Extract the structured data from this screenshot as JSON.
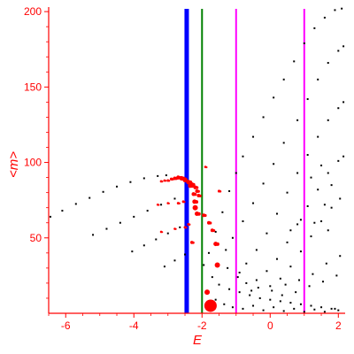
{
  "colors": {
    "axis": "#ff0000",
    "tick_label": "#ff0000",
    "black_dots": "#000000",
    "red_dots": "#ff0000",
    "line_blue": "#0000ff",
    "line_green": "#008000",
    "line_magenta": "#ff00ff"
  },
  "chart_data": {
    "type": "scatter",
    "xlabel": "E",
    "ylabel": "<m>",
    "xlim": [
      -6.5,
      2.2
    ],
    "ylim": [
      0,
      203
    ],
    "xticks": [
      -6,
      -4,
      -2,
      0,
      2
    ],
    "yticks": [
      50,
      100,
      150,
      200
    ],
    "xtick_labels": [
      "-6",
      "-4",
      "-2",
      "0",
      "2"
    ],
    "ytick_labels": [
      "50",
      "100",
      "150",
      "200"
    ],
    "grid": false,
    "vertical_lines": [
      {
        "x": -2.45,
        "color": "#0000ff",
        "style": "thick"
      },
      {
        "x": -2.0,
        "color": "#008000",
        "style": "thin"
      },
      {
        "x": -1.0,
        "color": "#ff00ff",
        "style": "thin"
      },
      {
        "x": 1.0,
        "color": "#ff00ff",
        "style": "thin"
      }
    ],
    "series": [
      {
        "color": "#000000",
        "marker": "small-dot",
        "points": [
          [
            -6.45,
            64
          ],
          [
            -6.1,
            68
          ],
          [
            -5.7,
            72.5
          ],
          [
            -5.3,
            76.5
          ],
          [
            -4.9,
            80.5
          ],
          [
            -4.5,
            84
          ],
          [
            -4.1,
            87
          ],
          [
            -3.7,
            89.5
          ],
          [
            -3.3,
            91
          ],
          [
            -3.05,
            91.5
          ],
          [
            -5.2,
            52
          ],
          [
            -4.8,
            56
          ],
          [
            -4.4,
            60
          ],
          [
            -4.0,
            64
          ],
          [
            -3.6,
            68
          ],
          [
            -3.2,
            72
          ],
          [
            -2.8,
            76
          ],
          [
            -4.05,
            41
          ],
          [
            -3.7,
            45
          ],
          [
            -3.35,
            49
          ],
          [
            -3.0,
            53
          ],
          [
            -2.65,
            57
          ],
          [
            -3.1,
            31
          ],
          [
            -2.8,
            35
          ],
          [
            -2.5,
            39
          ],
          [
            -1.95,
            32
          ],
          [
            -1.8,
            40
          ],
          [
            -1.6,
            54
          ],
          [
            -1.4,
            67
          ],
          [
            -1.2,
            81
          ],
          [
            -1.0,
            93
          ],
          [
            -0.8,
            104
          ],
          [
            -0.5,
            117
          ],
          [
            -0.2,
            130
          ],
          [
            0.1,
            143
          ],
          [
            0.4,
            155
          ],
          [
            0.7,
            167
          ],
          [
            1.0,
            179
          ],
          [
            1.3,
            189
          ],
          [
            1.6,
            196
          ],
          [
            1.9,
            201
          ],
          [
            2.1,
            202
          ],
          [
            -1.3,
            42
          ],
          [
            -1.1,
            50
          ],
          [
            -0.8,
            61
          ],
          [
            -0.5,
            73
          ],
          [
            -0.2,
            86
          ],
          [
            0.1,
            99
          ],
          [
            0.4,
            113
          ],
          [
            0.8,
            128
          ],
          [
            1.1,
            142
          ],
          [
            1.4,
            155
          ],
          [
            1.7,
            166
          ],
          [
            2.0,
            174
          ],
          [
            2.15,
            177
          ],
          [
            -0.9,
            27
          ],
          [
            -0.7,
            33
          ],
          [
            -0.4,
            42
          ],
          [
            -0.1,
            53
          ],
          [
            0.2,
            66
          ],
          [
            0.5,
            80
          ],
          [
            0.8,
            93
          ],
          [
            1.1,
            105
          ],
          [
            1.4,
            117
          ],
          [
            1.7,
            128
          ],
          [
            2.0,
            136
          ],
          [
            2.15,
            140
          ],
          [
            -0.4,
            22
          ],
          [
            -0.1,
            28
          ],
          [
            0.2,
            36
          ],
          [
            0.5,
            47
          ],
          [
            0.8,
            59
          ],
          [
            1.1,
            71
          ],
          [
            1.4,
            82
          ],
          [
            1.7,
            93
          ],
          [
            2.0,
            101
          ],
          [
            2.15,
            104
          ],
          [
            0.0,
            18
          ],
          [
            0.3,
            23
          ],
          [
            0.6,
            31
          ],
          [
            0.9,
            41
          ],
          [
            1.2,
            51
          ],
          [
            1.5,
            61
          ],
          [
            1.8,
            70
          ],
          [
            2.05,
            76
          ],
          [
            -1.7,
            24
          ],
          [
            -1.5,
            19
          ],
          [
            -1.2,
            16
          ],
          [
            -0.9,
            14
          ],
          [
            -0.6,
            12
          ],
          [
            -0.3,
            10
          ],
          [
            0.0,
            9
          ],
          [
            0.3,
            8
          ],
          [
            0.6,
            7
          ],
          [
            0.9,
            6
          ],
          [
            1.2,
            5
          ],
          [
            1.5,
            4
          ],
          [
            1.8,
            3
          ],
          [
            2.0,
            2
          ],
          [
            -1.6,
            9
          ],
          [
            -1.35,
            6
          ],
          [
            -1.1,
            4
          ],
          [
            -0.8,
            3
          ],
          [
            -0.5,
            5
          ],
          [
            -0.2,
            2
          ],
          [
            0.1,
            4
          ],
          [
            0.4,
            1.5
          ],
          [
            0.7,
            3
          ],
          [
            1.0,
            1
          ],
          [
            1.3,
            2.5
          ],
          [
            1.6,
            1
          ],
          [
            1.9,
            3
          ],
          [
            -0.7,
            20
          ],
          [
            -0.35,
            17
          ],
          [
            0.05,
            15
          ],
          [
            0.45,
            19
          ],
          [
            0.85,
            22
          ],
          [
            1.25,
            26
          ],
          [
            1.65,
            33
          ],
          [
            2.05,
            38
          ],
          [
            -1.25,
            30
          ],
          [
            -0.95,
            24
          ],
          [
            -0.55,
            15
          ],
          [
            0.35,
            12
          ],
          [
            0.75,
            14
          ],
          [
            1.15,
            18
          ],
          [
            1.55,
            21
          ],
          [
            1.95,
            25
          ],
          [
            1.2,
            90
          ],
          [
            1.5,
            98
          ],
          [
            1.8,
            85
          ],
          [
            1.3,
            60
          ],
          [
            1.7,
            55
          ],
          [
            0.6,
            55
          ],
          [
            0.9,
            62
          ],
          [
            1.6,
            72
          ]
        ]
      },
      {
        "color": "#ff0000",
        "marker": "blob",
        "points": [
          [
            -3.0,
            88,
            1.5
          ],
          [
            -2.9,
            89,
            1.7
          ],
          [
            -2.8,
            89.5,
            2
          ],
          [
            -2.7,
            90,
            2.3
          ],
          [
            -2.6,
            89.5,
            2.6
          ],
          [
            -2.5,
            88.5,
            2.8
          ],
          [
            -2.4,
            87,
            2.6
          ],
          [
            -2.3,
            85.5,
            2.3
          ],
          [
            -2.2,
            83.5,
            2.2
          ],
          [
            -2.15,
            81,
            2
          ],
          [
            -2.1,
            78,
            2
          ],
          [
            -3.1,
            88,
            1.4
          ],
          [
            -3.2,
            87.5,
            1.4
          ],
          [
            -2.35,
            84.5,
            2.4
          ],
          [
            -2.25,
            79,
            2.2
          ],
          [
            -2.22,
            74,
            2.5
          ],
          [
            -2.2,
            70,
            3
          ],
          [
            -2.15,
            66,
            2.5
          ],
          [
            -3.3,
            72,
            1.3
          ],
          [
            -3.0,
            73,
            1.3
          ],
          [
            -2.7,
            73,
            1.5
          ],
          [
            -2.55,
            74,
            1.5
          ],
          [
            -3.2,
            54,
            1.3
          ],
          [
            -2.8,
            56,
            1.3
          ],
          [
            -2.5,
            57,
            1.5
          ],
          [
            -2.4,
            59,
            1.5
          ],
          [
            -1.95,
            65,
            2
          ],
          [
            -1.8,
            60,
            2
          ],
          [
            -1.7,
            55,
            2
          ],
          [
            -1.6,
            46,
            2.5
          ],
          [
            -1.55,
            32,
            3
          ],
          [
            -1.85,
            14,
            3
          ],
          [
            -1.75,
            5,
            7
          ],
          [
            -1.5,
            81,
            1.6
          ],
          [
            -1.9,
            97,
            1.4
          ],
          [
            -2.3,
            47,
            1.8
          ]
        ]
      }
    ]
  }
}
